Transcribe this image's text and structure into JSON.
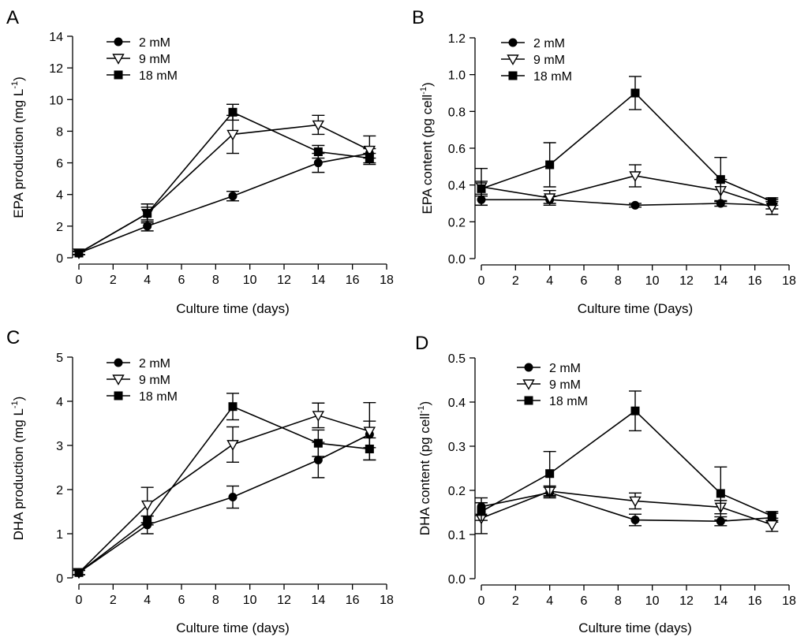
{
  "chart_data": [
    {
      "panel": "A",
      "type": "line",
      "title": "",
      "xlabel": "Culture time (days)",
      "ylabel": "EPA production (mg L",
      "ylabel_sup": "-1",
      "ylabel_tail": ")",
      "xlim": [
        0,
        18
      ],
      "ylim": [
        0,
        14
      ],
      "xticks": [
        "0",
        "2",
        "4",
        "6",
        "8",
        "10",
        "12",
        "14",
        "16",
        "18"
      ],
      "yticks": [
        "0",
        "2",
        "4",
        "6",
        "8",
        "10",
        "12",
        "14"
      ],
      "x": [
        0,
        4,
        9,
        14,
        17
      ],
      "legend": {
        "position": "top-left"
      },
      "series": [
        {
          "name": "2 mM",
          "marker": "circle",
          "values": [
            0.3,
            2.0,
            3.9,
            6.0,
            6.6
          ],
          "errors": [
            0.1,
            0.3,
            0.3,
            0.6,
            0.3
          ]
        },
        {
          "name": "9 mM",
          "marker": "triangle-down",
          "values": [
            0.3,
            2.8,
            7.8,
            8.4,
            6.8
          ],
          "errors": [
            0.1,
            0.6,
            1.2,
            0.6,
            0.9
          ]
        },
        {
          "name": "18 mM",
          "marker": "square",
          "values": [
            0.3,
            2.8,
            9.2,
            6.7,
            6.3
          ],
          "errors": [
            0.1,
            0.4,
            0.5,
            0.4,
            0.3
          ]
        }
      ]
    },
    {
      "panel": "B",
      "type": "line",
      "title": "",
      "xlabel": "Culture time (Days)",
      "ylabel": "EPA content (pg cell",
      "ylabel_sup": "-1",
      "ylabel_tail": ")",
      "xlim": [
        0,
        18
      ],
      "ylim": [
        0,
        1.2
      ],
      "xticks": [
        "0",
        "2",
        "4",
        "6",
        "8",
        "10",
        "12",
        "14",
        "16",
        "18"
      ],
      "yticks": [
        "0.0",
        "0.2",
        "0.4",
        "0.6",
        "0.8",
        "1.0",
        "1.2"
      ],
      "x": [
        0,
        4,
        9,
        14,
        17
      ],
      "legend": {
        "position": "top-left"
      },
      "series": [
        {
          "name": "2 mM",
          "marker": "circle",
          "values": [
            0.32,
            0.32,
            0.29,
            0.3,
            0.29
          ],
          "errors": [
            0.03,
            0.02,
            0.01,
            0.015,
            0.02
          ]
        },
        {
          "name": "9 mM",
          "marker": "triangle-down",
          "values": [
            0.39,
            0.33,
            0.45,
            0.37,
            0.28
          ],
          "errors": [
            0.1,
            0.04,
            0.06,
            0.06,
            0.04
          ]
        },
        {
          "name": "18 mM",
          "marker": "square",
          "values": [
            0.38,
            0.51,
            0.9,
            0.43,
            0.31
          ],
          "errors": [
            0.04,
            0.12,
            0.09,
            0.12,
            0.02
          ]
        }
      ]
    },
    {
      "panel": "C",
      "type": "line",
      "title": "",
      "xlabel": "Culture time (days)",
      "ylabel": "DHA production (mg L",
      "ylabel_sup": "-1",
      "ylabel_tail": ")",
      "xlim": [
        0,
        18
      ],
      "ylim": [
        0,
        5
      ],
      "xticks": [
        "0",
        "2",
        "4",
        "6",
        "8",
        "10",
        "12",
        "14",
        "16",
        "18"
      ],
      "yticks": [
        "0",
        "1",
        "2",
        "3",
        "4",
        "5"
      ],
      "x": [
        0,
        4,
        9,
        14,
        17
      ],
      "legend": {
        "position": "top-left"
      },
      "series": [
        {
          "name": "2 mM",
          "marker": "circle",
          "values": [
            0.12,
            1.2,
            1.83,
            2.67,
            3.25
          ],
          "errors": [
            0.05,
            0.2,
            0.25,
            0.4,
            0.3
          ]
        },
        {
          "name": "9 mM",
          "marker": "triangle-down",
          "values": [
            0.12,
            1.65,
            3.02,
            3.68,
            3.32
          ],
          "errors": [
            0.05,
            0.4,
            0.4,
            0.28,
            0.65
          ]
        },
        {
          "name": "18 mM",
          "marker": "square",
          "values": [
            0.12,
            1.3,
            3.88,
            3.05,
            2.92
          ],
          "errors": [
            0.05,
            0.1,
            0.3,
            0.3,
            0.25
          ]
        }
      ]
    },
    {
      "panel": "D",
      "type": "line",
      "title": "",
      "xlabel": "Culture time (days)",
      "ylabel": "DHA content (pg cell",
      "ylabel_sup": "-1",
      "ylabel_tail": ")",
      "xlim": [
        0,
        18
      ],
      "ylim": [
        0,
        0.5
      ],
      "xticks": [
        "0",
        "2",
        "4",
        "6",
        "8",
        "10",
        "12",
        "14",
        "16",
        "18"
      ],
      "yticks": [
        "0.0",
        "0.1",
        "0.2",
        "0.3",
        "0.4",
        "0.5"
      ],
      "x": [
        0,
        4,
        9,
        14,
        17
      ],
      "legend": {
        "position": "top-left"
      },
      "series": [
        {
          "name": "2 mM",
          "marker": "circle",
          "values": [
            0.163,
            0.195,
            0.133,
            0.13,
            0.138
          ],
          "errors": [
            0.02,
            0.012,
            0.013,
            0.01,
            0.01
          ]
        },
        {
          "name": "9 mM",
          "marker": "triangle-down",
          "values": [
            0.137,
            0.198,
            0.176,
            0.162,
            0.122
          ],
          "errors": [
            0.035,
            0.012,
            0.018,
            0.015,
            0.015
          ]
        },
        {
          "name": "18 mM",
          "marker": "square",
          "values": [
            0.152,
            0.238,
            0.38,
            0.193,
            0.142
          ],
          "errors": [
            0.02,
            0.05,
            0.045,
            0.06,
            0.01
          ]
        }
      ]
    }
  ]
}
